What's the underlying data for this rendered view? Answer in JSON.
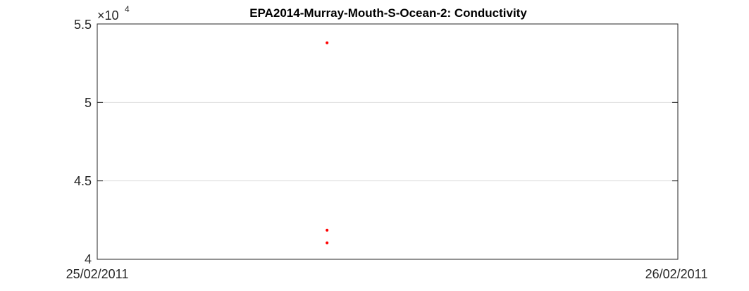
{
  "chart_data": {
    "type": "scatter",
    "title": "EPA2014-Murray-Mouth-S-Ocean-2: Conductivity",
    "xlabel": "",
    "ylabel": "",
    "x_axis": {
      "type": "date",
      "range": [
        "25/02/2011",
        "26/02/2011"
      ],
      "tick_labels": [
        "25/02/2011",
        "26/02/2011"
      ]
    },
    "y_axis": {
      "range": [
        40000,
        55000
      ],
      "exponent_label": {
        "base": "×10",
        "power": "4"
      },
      "tick_labels": [
        "4",
        "4.5",
        "5",
        "5.5"
      ]
    },
    "grid": "horizontal",
    "legend": "none",
    "marker_color": "#ff0000",
    "points": [
      {
        "x": "25/02/2011 09:30",
        "y": 53800
      },
      {
        "x": "25/02/2011 09:30",
        "y": 41850
      },
      {
        "x": "25/02/2011 09:30",
        "y": 41050
      }
    ]
  }
}
